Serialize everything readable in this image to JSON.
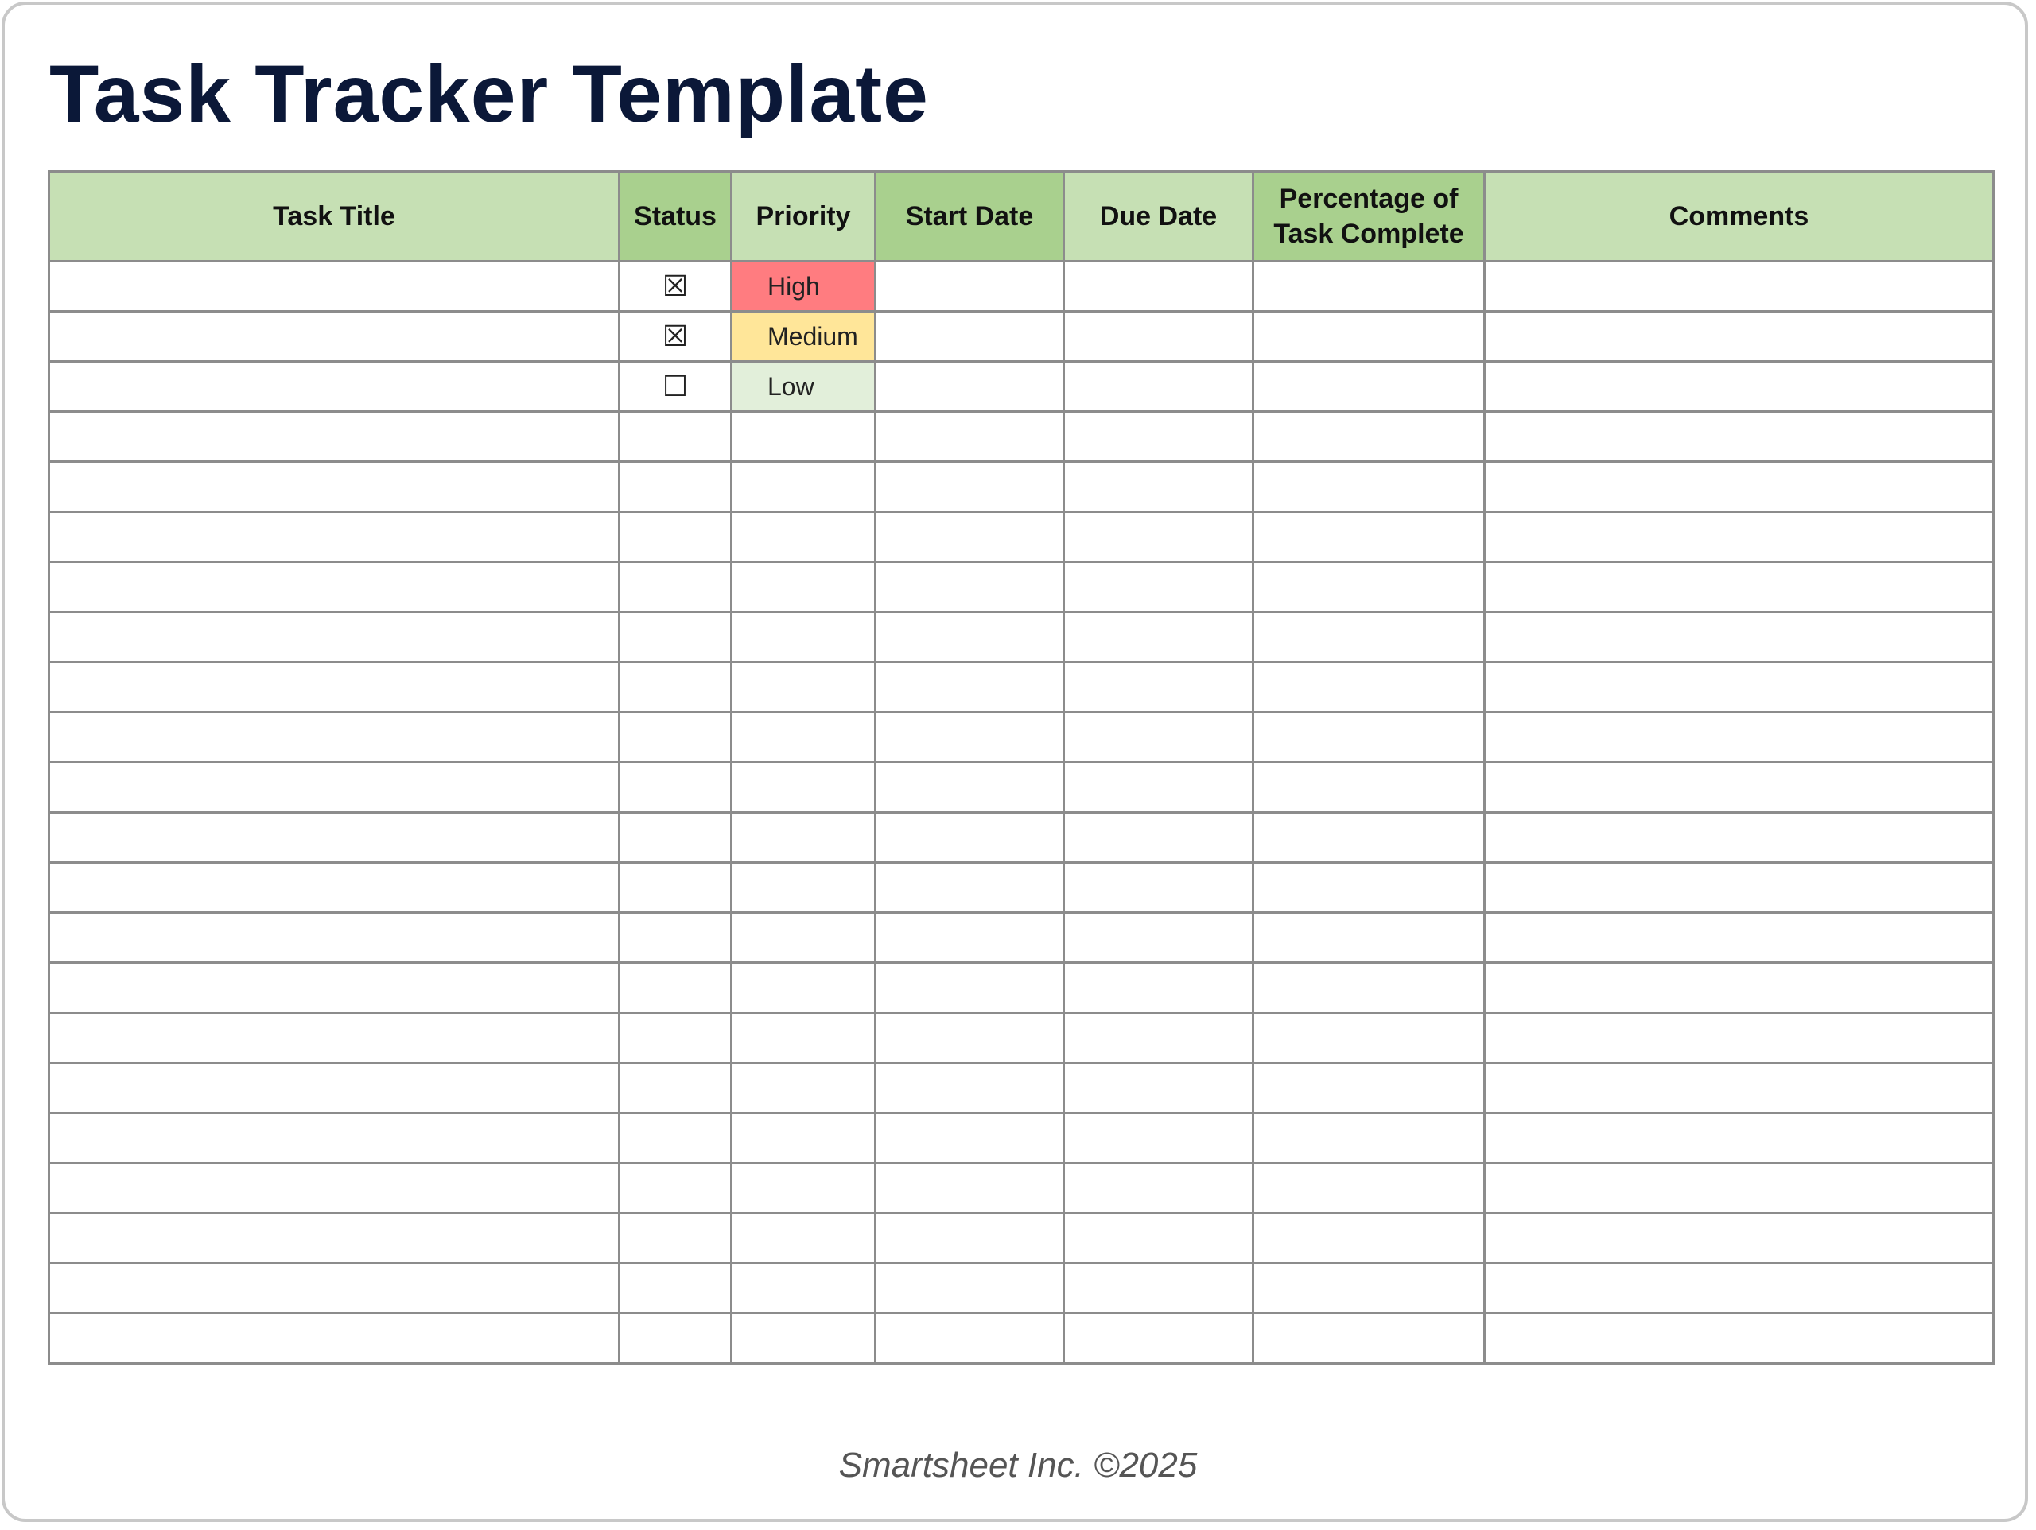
{
  "title": "Task Tracker Template",
  "columns": [
    {
      "label": "Task Title",
      "dark": false
    },
    {
      "label": "Status",
      "dark": true
    },
    {
      "label": "Priority",
      "dark": false
    },
    {
      "label": "Start Date",
      "dark": true
    },
    {
      "label": "Due Date",
      "dark": false
    },
    {
      "label": "Percentage of Task Complete",
      "dark": true
    },
    {
      "label": "Comments",
      "dark": false
    }
  ],
  "colors": {
    "high": "#ff7c80",
    "medium": "#ffe699",
    "low": "#e2efda",
    "header_light": "#c6e0b4",
    "header_dark": "#a9d08e"
  },
  "rows": [
    {
      "task": "",
      "status": "☒",
      "priority": "High",
      "priority_level": "high",
      "start": "",
      "due": "",
      "percent": "",
      "comments": ""
    },
    {
      "task": "",
      "status": "☒",
      "priority": "Medium",
      "priority_level": "medium",
      "start": "",
      "due": "",
      "percent": "",
      "comments": ""
    },
    {
      "task": "",
      "status": "☐",
      "priority": "Low",
      "priority_level": "low",
      "start": "",
      "due": "",
      "percent": "",
      "comments": ""
    },
    {},
    {},
    {},
    {},
    {},
    {},
    {},
    {},
    {},
    {},
    {},
    {},
    {},
    {},
    {},
    {},
    {},
    {},
    {}
  ],
  "footer": "Smartsheet Inc. ©2025"
}
